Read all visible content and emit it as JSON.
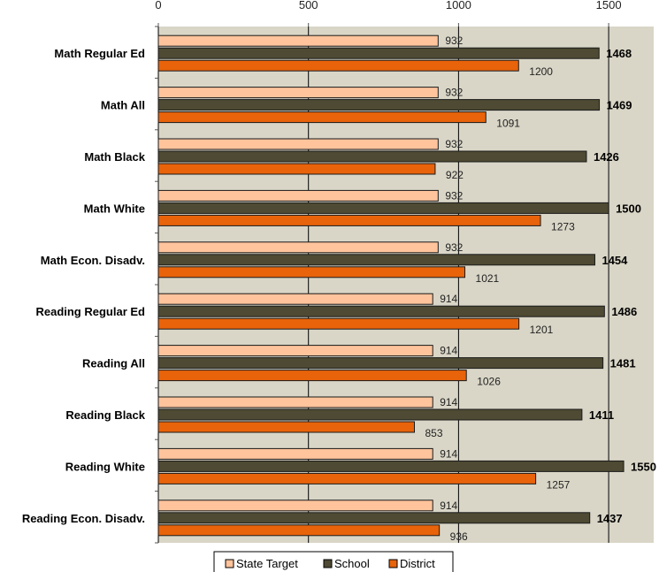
{
  "chart_data": {
    "type": "bar",
    "orientation": "horizontal",
    "categories": [
      "Math Regular Ed",
      "Math All",
      "Math Black",
      "Math White",
      "Math Econ. Disadv.",
      "Reading Regular Ed",
      "Reading All",
      "Reading Black",
      "Reading White",
      "Reading Econ. Disadv."
    ],
    "series": [
      {
        "name": "State Target",
        "color": "#FFC49C",
        "values": [
          932,
          932,
          932,
          932,
          932,
          914,
          914,
          914,
          914,
          914
        ]
      },
      {
        "name": "School",
        "color": "#4E4A33",
        "values": [
          1468,
          1469,
          1426,
          1500,
          1454,
          1486,
          1481,
          1411,
          1550,
          1437
        ]
      },
      {
        "name": "District",
        "color": "#E8630A",
        "values": [
          1200,
          1091,
          922,
          1273,
          1021,
          1201,
          1026,
          853,
          1257,
          936
        ]
      }
    ],
    "xlim": [
      0,
      1650
    ],
    "x_ticks": [
      0,
      500,
      1000,
      1500
    ],
    "grid": "vertical",
    "background": "#D9D6C7",
    "legend_position": "bottom",
    "title": "",
    "xlabel": "",
    "ylabel": ""
  }
}
